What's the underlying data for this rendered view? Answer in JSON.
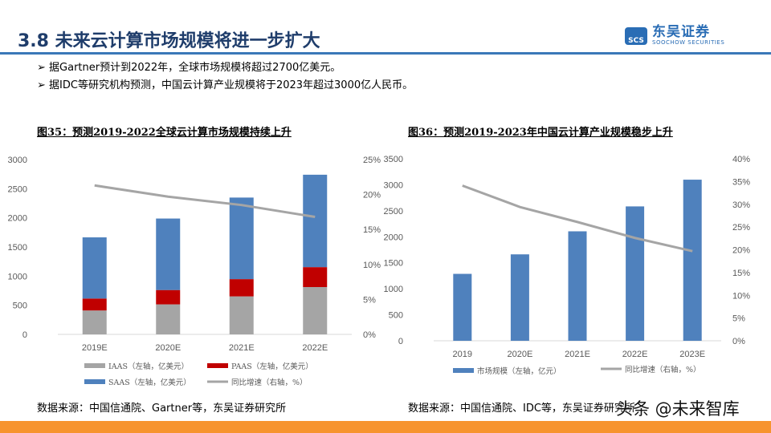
{
  "header": {
    "title": "3.8 未来云计算市场规模将进一步扩大",
    "logo_cn": "东吴证券",
    "logo_en": "SOOCHOW SECURITIES",
    "logo_mark": "SCS"
  },
  "bullets": [
    "据Gartner预计到2022年，全球市场规模将超过2700亿美元。",
    "据IDC等研究机构预测，中国云计算产业规模将于2023年超过3000亿人民币。"
  ],
  "chart_data": [
    {
      "type": "bar",
      "stacked": true,
      "title": "图35：预测2019-2022全球云计算市场规模持续上升",
      "categories": [
        "2019E",
        "2020E",
        "2021E",
        "2022E"
      ],
      "series": [
        {
          "name": "IAAS（左轴，亿美元）",
          "color": "#a5a5a5",
          "values": [
            410,
            515,
            652,
            812
          ]
        },
        {
          "name": "PAAS（左轴，亿美元）",
          "color": "#c00000",
          "values": [
            205,
            246,
            296,
            342
          ]
        },
        {
          "name": "SAAS（左轴，亿美元）",
          "color": "#4f81bd",
          "values": [
            1050,
            1227,
            1400,
            1586
          ]
        },
        {
          "name": "同比增速（右轴，%）",
          "type": "line",
          "axis": "right",
          "color": "#a5a5a5",
          "values": [
            21.3,
            19.7,
            18.5,
            16.8
          ]
        }
      ],
      "ylim": [
        0,
        3000
      ],
      "yticks": [
        "0",
        "500",
        "1000",
        "1500",
        "2000",
        "2500",
        "3000"
      ],
      "y2lim": [
        0,
        25
      ],
      "y2ticks": [
        "0%",
        "5%",
        "10%",
        "15%",
        "20%",
        "25%"
      ],
      "source": "数据来源：中国信通院、Gartner等，东吴证券研究所"
    },
    {
      "type": "bar",
      "title": "图36：预测2019-2023年中国云计算产业规模稳步上升",
      "categories": [
        "2019",
        "2020E",
        "2021E",
        "2022E",
        "2023E"
      ],
      "series": [
        {
          "name": "市场规模（左轴，亿元）",
          "color": "#4f81bd",
          "values": [
            1287,
            1662,
            2105,
            2584,
            3098
          ]
        },
        {
          "name": "同比增速（右轴，%）",
          "type": "line",
          "axis": "right",
          "color": "#a5a5a5",
          "values": [
            34.1,
            29.4,
            26.1,
            22.6,
            19.7
          ]
        }
      ],
      "ylim": [
        0,
        3500
      ],
      "yticks": [
        "0",
        "500",
        "1000",
        "1500",
        "2000",
        "2500",
        "3000",
        "3500"
      ],
      "y2lim": [
        0,
        40
      ],
      "y2ticks": [
        "0%",
        "5%",
        "10%",
        "15%",
        "20%",
        "25%",
        "30%",
        "35%",
        "40%"
      ],
      "source": "数据来源：中国信通院、IDC等，东吴证券研究所"
    }
  ],
  "watermark": "头条 @未来智库",
  "colors": {
    "title": "#1f3d6b",
    "rule": "#3a78b8",
    "footer": "#f7942e"
  }
}
